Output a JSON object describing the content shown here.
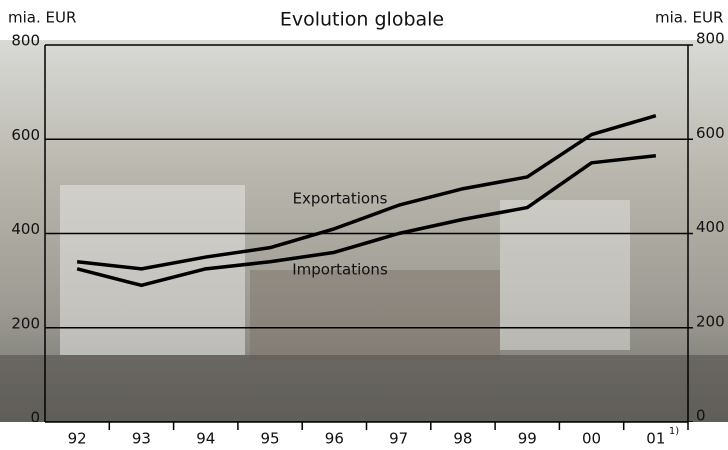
{
  "chart_data": {
    "type": "line",
    "title": "Evolution globale",
    "y_label": "mia. EUR",
    "y2_label": "mia. EUR",
    "categories": [
      "92",
      "93",
      "94",
      "95",
      "96",
      "97",
      "98",
      "99",
      "00",
      "01"
    ],
    "footnote_marker": "1)",
    "series": [
      {
        "name": "Exportations",
        "color": "#000000",
        "values": [
          340,
          325,
          350,
          370,
          410,
          460,
          495,
          520,
          610,
          650
        ]
      },
      {
        "name": "Importations",
        "color": "#000000",
        "values": [
          325,
          290,
          325,
          340,
          360,
          400,
          430,
          455,
          550,
          565
        ]
      }
    ],
    "ylim": [
      0,
      800
    ],
    "yticks": [
      0,
      200,
      400,
      600,
      800
    ],
    "y2lim": [
      0,
      800
    ],
    "y2ticks": [
      0,
      200,
      400,
      600,
      800
    ],
    "grid": true
  }
}
